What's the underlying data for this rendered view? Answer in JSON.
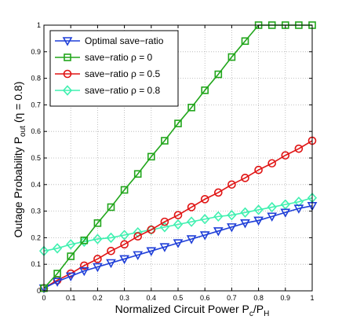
{
  "chart_data": {
    "type": "line",
    "title": "",
    "xlabel": "Normalized Circuit Power P_c/P_H",
    "ylabel": "Outage Probability P_out (η = 0.8)",
    "xlim": [
      0,
      1
    ],
    "ylim": [
      0,
      1
    ],
    "x_ticks": [
      "0",
      "0.1",
      "0.2",
      "0.3",
      "0.4",
      "0.5",
      "0.6",
      "0.7",
      "0.8",
      "0.9",
      "1"
    ],
    "y_ticks": [
      "0",
      "0.1",
      "0.2",
      "0.3",
      "0.4",
      "0.5",
      "0.6",
      "0.7",
      "0.8",
      "0.9",
      "1"
    ],
    "grid": true,
    "legend_position": "top-left",
    "x": [
      0,
      0.05,
      0.1,
      0.15,
      0.2,
      0.25,
      0.3,
      0.35,
      0.4,
      0.45,
      0.5,
      0.55,
      0.6,
      0.65,
      0.7,
      0.75,
      0.8,
      0.85,
      0.9,
      0.95,
      1.0
    ],
    "series": [
      {
        "name": "Optimal save−ratio",
        "color": "#1f3fd8",
        "marker": "triangle-down",
        "values": [
          0.01,
          0.035,
          0.055,
          0.075,
          0.09,
          0.105,
          0.12,
          0.135,
          0.15,
          0.165,
          0.18,
          0.195,
          0.21,
          0.225,
          0.24,
          0.255,
          0.265,
          0.28,
          0.295,
          0.31,
          0.32
        ]
      },
      {
        "name": "save−ratio ρ = 0",
        "color": "#22a61c",
        "marker": "square",
        "values": [
          0.01,
          0.065,
          0.13,
          0.19,
          0.255,
          0.315,
          0.38,
          0.44,
          0.505,
          0.565,
          0.63,
          0.69,
          0.755,
          0.815,
          0.88,
          0.94,
          1.0,
          1.0,
          1.0,
          1.0,
          1.0
        ]
      },
      {
        "name": "save−ratio ρ = 0.5",
        "color": "#e01414",
        "marker": "circle",
        "values": [
          0.01,
          0.04,
          0.065,
          0.095,
          0.12,
          0.15,
          0.175,
          0.205,
          0.23,
          0.26,
          0.285,
          0.315,
          0.345,
          0.37,
          0.4,
          0.425,
          0.455,
          0.48,
          0.51,
          0.535,
          0.565
        ]
      },
      {
        "name": "save−ratio ρ = 0.8",
        "color": "#40f0b0",
        "marker": "diamond",
        "values": [
          0.15,
          0.16,
          0.175,
          0.185,
          0.195,
          0.2,
          0.21,
          0.22,
          0.23,
          0.24,
          0.25,
          0.26,
          0.27,
          0.28,
          0.285,
          0.295,
          0.305,
          0.315,
          0.325,
          0.335,
          0.35
        ]
      }
    ]
  }
}
